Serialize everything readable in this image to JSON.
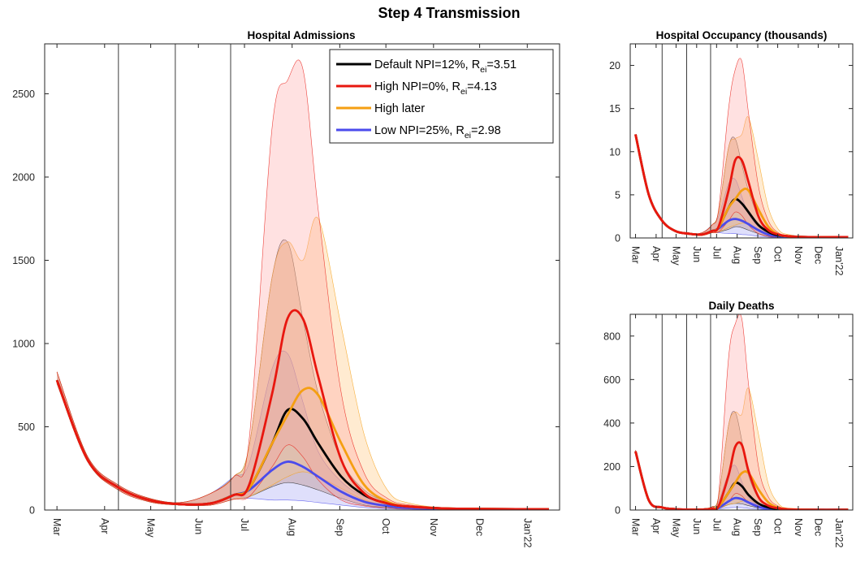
{
  "figure_title": "Step 4 Transmission",
  "colors": {
    "default": "#000000",
    "high": "#e8170f",
    "high_later": "#f59f12",
    "low": "#4b4bec",
    "default_band": "#b07a6c",
    "high_band": "#ff9c9c",
    "high_later_band": "#ffc070",
    "low_band": "#8c8cf0",
    "axis": "#262626"
  },
  "months": [
    "Mar",
    "Apr",
    "May",
    "Jun",
    "Jul",
    "Aug",
    "Sep",
    "Oct",
    "Nov",
    "Dec",
    "Jan'22"
  ],
  "legend": [
    {
      "series": "default",
      "pre": "Default NPI=12%, R",
      "sub": "ei",
      "post": "=3.51"
    },
    {
      "series": "high",
      "pre": "High NPI=0%, R",
      "sub": "ei",
      "post": "=4.13"
    },
    {
      "series": "high_later",
      "pre": "High later",
      "sub": "",
      "post": ""
    },
    {
      "series": "low",
      "pre": "Low NPI=25%, R",
      "sub": "ei",
      "post": "=2.98"
    }
  ],
  "chart_data": [
    {
      "id": "admissions",
      "type": "line",
      "title": "Hospital Admissions",
      "x_unit": "day index from 1 Mar 2021",
      "xlim": [
        -8,
        327
      ],
      "ylim": [
        0,
        2800
      ],
      "yticks": [
        0,
        500,
        1000,
        1500,
        2000,
        2500
      ],
      "vlines": [
        40,
        77,
        113
      ],
      "series": [
        {
          "key": "default",
          "name": "Default NPI=12%, R_ei=3.51",
          "x": [
            0,
            20,
            40,
            60,
            80,
            100,
            115,
            125,
            140,
            150,
            160,
            170,
            185,
            200,
            215,
            230,
            260,
            320
          ],
          "y": [
            780,
            300,
            135,
            60,
            35,
            40,
            90,
            130,
            400,
            600,
            550,
            400,
            200,
            90,
            40,
            20,
            8,
            5
          ],
          "lower": [
            760,
            290,
            120,
            50,
            30,
            30,
            65,
            80,
            140,
            165,
            150,
            120,
            70,
            30,
            15,
            8,
            5,
            3
          ],
          "upper": [
            830,
            320,
            150,
            70,
            45,
            100,
            200,
            380,
            1400,
            1610,
            1150,
            700,
            300,
            120,
            50,
            25,
            10,
            6
          ]
        },
        {
          "key": "high",
          "name": "High NPI=0%, R_ei=4.13",
          "x": [
            0,
            20,
            40,
            60,
            80,
            100,
            115,
            125,
            140,
            150,
            160,
            170,
            185,
            200,
            215,
            230,
            260,
            320
          ],
          "y": [
            780,
            300,
            135,
            60,
            35,
            40,
            90,
            150,
            700,
            1150,
            1150,
            800,
            300,
            100,
            40,
            20,
            8,
            5
          ],
          "lower": [
            760,
            290,
            120,
            50,
            30,
            30,
            65,
            80,
            260,
            390,
            320,
            180,
            60,
            25,
            12,
            6,
            4,
            3
          ],
          "upper": [
            830,
            320,
            150,
            70,
            45,
            100,
            200,
            420,
            2300,
            2580,
            2650,
            1800,
            700,
            220,
            70,
            30,
            12,
            6
          ]
        },
        {
          "key": "high_later",
          "name": "High later",
          "x": [
            0,
            20,
            40,
            60,
            80,
            100,
            115,
            125,
            140,
            150,
            160,
            170,
            185,
            200,
            215,
            230,
            260,
            320
          ],
          "y": [
            780,
            300,
            135,
            60,
            35,
            40,
            90,
            130,
            400,
            570,
            720,
            690,
            400,
            150,
            50,
            20,
            8,
            5
          ],
          "lower": [
            760,
            290,
            120,
            50,
            30,
            30,
            65,
            80,
            150,
            200,
            230,
            200,
            130,
            60,
            25,
            10,
            5,
            3
          ],
          "upper": [
            830,
            320,
            150,
            70,
            45,
            100,
            200,
            380,
            1400,
            1610,
            1500,
            1750,
            1100,
            450,
            120,
            40,
            12,
            6
          ]
        },
        {
          "key": "low",
          "name": "Low NPI=25%, R_ei=2.98",
          "x": [
            0,
            20,
            40,
            60,
            80,
            100,
            115,
            125,
            140,
            150,
            160,
            170,
            185,
            200,
            215,
            230,
            260,
            320
          ],
          "y": [
            780,
            300,
            135,
            60,
            35,
            40,
            90,
            120,
            240,
            290,
            260,
            200,
            110,
            50,
            25,
            12,
            6,
            4
          ],
          "lower": [
            760,
            290,
            120,
            50,
            30,
            30,
            65,
            70,
            60,
            60,
            55,
            45,
            30,
            15,
            8,
            5,
            3,
            2
          ],
          "upper": [
            830,
            320,
            150,
            70,
            45,
            100,
            200,
            280,
            850,
            940,
            650,
            350,
            170,
            80,
            35,
            15,
            7,
            4
          ]
        }
      ]
    },
    {
      "id": "occupancy",
      "type": "line",
      "title": "Hospital Occupancy (thousands)",
      "x_unit": "day index from 1 Mar 2021",
      "xlim": [
        -8,
        327
      ],
      "ylim": [
        0,
        22.5
      ],
      "yticks": [
        0,
        5,
        10,
        15,
        20
      ],
      "vlines": [
        40,
        77,
        113
      ],
      "series": [
        {
          "key": "default",
          "name": "Default NPI=12%, R_ei=3.51",
          "x": [
            0,
            20,
            40,
            60,
            80,
            100,
            115,
            125,
            140,
            150,
            160,
            170,
            185,
            200,
            215,
            230,
            260,
            320
          ],
          "y": [
            12,
            5,
            2,
            0.8,
            0.5,
            0.4,
            0.8,
            1.2,
            3.5,
            4.5,
            4.0,
            3.0,
            1.5,
            0.7,
            0.3,
            0.2,
            0.1,
            0.1
          ],
          "lower": [
            12,
            5,
            2,
            0.8,
            0.5,
            0.3,
            0.6,
            0.7,
            1.0,
            1.3,
            1.2,
            0.9,
            0.5,
            0.2,
            0.1,
            0.1,
            0.05,
            0.05
          ],
          "upper": [
            12,
            5,
            2,
            0.8,
            0.5,
            0.6,
            1.5,
            3.0,
            10.5,
            11.5,
            8.5,
            5.5,
            2.5,
            1.0,
            0.4,
            0.2,
            0.1,
            0.1
          ]
        },
        {
          "key": "high",
          "name": "High NPI=0%, R_ei=4.13",
          "x": [
            0,
            20,
            40,
            60,
            80,
            100,
            115,
            125,
            140,
            150,
            160,
            170,
            185,
            200,
            215,
            230,
            260,
            320
          ],
          "y": [
            12,
            5,
            2,
            0.8,
            0.5,
            0.4,
            0.8,
            1.3,
            5.5,
            9.0,
            9.0,
            6.5,
            2.5,
            0.9,
            0.4,
            0.2,
            0.1,
            0.1
          ],
          "lower": [
            12,
            5,
            2,
            0.8,
            0.5,
            0.3,
            0.6,
            0.7,
            2.0,
            3.0,
            2.6,
            1.5,
            0.5,
            0.2,
            0.1,
            0.1,
            0.05,
            0.05
          ],
          "upper": [
            12,
            5,
            2,
            0.8,
            0.5,
            0.6,
            1.5,
            3.3,
            15.0,
            19.5,
            20.5,
            14.5,
            6.0,
            2.0,
            0.6,
            0.3,
            0.1,
            0.1
          ]
        },
        {
          "key": "high_later",
          "name": "High later",
          "x": [
            0,
            20,
            40,
            60,
            80,
            100,
            115,
            125,
            140,
            150,
            160,
            170,
            185,
            200,
            215,
            230,
            260,
            320
          ],
          "y": [
            12,
            5,
            2,
            0.8,
            0.5,
            0.4,
            0.8,
            1.2,
            3.5,
            4.5,
            5.5,
            5.5,
            3.3,
            1.3,
            0.4,
            0.2,
            0.1,
            0.1
          ],
          "lower": [
            12,
            5,
            2,
            0.8,
            0.5,
            0.3,
            0.6,
            0.7,
            1.2,
            1.5,
            1.7,
            1.6,
            1.0,
            0.5,
            0.2,
            0.1,
            0.05,
            0.05
          ],
          "upper": [
            12,
            5,
            2,
            0.8,
            0.5,
            0.6,
            1.5,
            3.0,
            10.5,
            11.5,
            12.0,
            14.0,
            9.0,
            3.5,
            1.0,
            0.4,
            0.1,
            0.1
          ]
        },
        {
          "key": "low",
          "name": "Low NPI=25%, R_ei=2.98",
          "x": [
            0,
            20,
            40,
            60,
            80,
            100,
            115,
            125,
            140,
            150,
            160,
            170,
            185,
            200,
            215,
            230,
            260,
            320
          ],
          "y": [
            12,
            5,
            2,
            0.8,
            0.5,
            0.4,
            0.8,
            1.1,
            2.0,
            2.2,
            2.0,
            1.6,
            0.9,
            0.4,
            0.2,
            0.1,
            0.05,
            0.05
          ],
          "lower": [
            12,
            5,
            2,
            0.8,
            0.5,
            0.3,
            0.6,
            0.6,
            0.5,
            0.5,
            0.4,
            0.35,
            0.2,
            0.1,
            0.05,
            0.05,
            0.02,
            0.02
          ],
          "upper": [
            12,
            5,
            2,
            0.8,
            0.5,
            0.6,
            1.5,
            2.5,
            6.3,
            6.8,
            4.8,
            2.8,
            1.3,
            0.6,
            0.3,
            0.1,
            0.05,
            0.05
          ]
        }
      ]
    },
    {
      "id": "deaths",
      "type": "line",
      "title": "Daily Deaths",
      "x_unit": "day index from 1 Mar 2021",
      "xlim": [
        -8,
        327
      ],
      "ylim": [
        0,
        900
      ],
      "yticks": [
        0,
        200,
        400,
        600,
        800
      ],
      "vlines": [
        40,
        77,
        113
      ],
      "series": [
        {
          "key": "default",
          "name": "Default NPI=12%, R_ei=3.51",
          "x": [
            0,
            20,
            40,
            60,
            80,
            100,
            115,
            125,
            140,
            150,
            160,
            170,
            185,
            200,
            215,
            230,
            260,
            320
          ],
          "y": [
            270,
            45,
            12,
            4,
            2,
            2,
            6,
            15,
            80,
            125,
            110,
            70,
            30,
            12,
            5,
            2,
            1,
            1
          ],
          "lower": [
            265,
            42,
            11,
            3,
            2,
            1,
            4,
            7,
            25,
            30,
            28,
            20,
            10,
            4,
            2,
            1,
            1,
            1
          ],
          "upper": [
            275,
            48,
            13,
            5,
            3,
            6,
            15,
            60,
            390,
            450,
            320,
            160,
            55,
            20,
            7,
            3,
            1,
            1
          ]
        },
        {
          "key": "high",
          "name": "High NPI=0%, R_ei=4.13",
          "x": [
            0,
            20,
            40,
            60,
            80,
            100,
            115,
            125,
            140,
            150,
            160,
            170,
            185,
            200,
            215,
            230,
            260,
            320
          ],
          "y": [
            270,
            45,
            12,
            4,
            2,
            2,
            6,
            18,
            160,
            290,
            300,
            180,
            60,
            20,
            8,
            3,
            1,
            1
          ],
          "lower": [
            265,
            42,
            11,
            3,
            2,
            1,
            4,
            8,
            40,
            75,
            65,
            35,
            12,
            5,
            2,
            1,
            1,
            1
          ],
          "upper": [
            275,
            48,
            13,
            5,
            3,
            6,
            15,
            70,
            700,
            855,
            880,
            580,
            200,
            60,
            18,
            6,
            2,
            1
          ]
        },
        {
          "key": "high_later",
          "name": "High later",
          "x": [
            0,
            20,
            40,
            60,
            80,
            100,
            115,
            125,
            140,
            150,
            160,
            170,
            185,
            200,
            215,
            230,
            260,
            320
          ],
          "y": [
            270,
            45,
            12,
            4,
            2,
            2,
            6,
            15,
            80,
            125,
            170,
            170,
            95,
            35,
            10,
            4,
            1,
            1
          ],
          "lower": [
            265,
            42,
            11,
            3,
            2,
            1,
            4,
            7,
            25,
            30,
            40,
            45,
            30,
            12,
            4,
            2,
            1,
            1
          ],
          "upper": [
            275,
            48,
            13,
            5,
            3,
            6,
            15,
            60,
            390,
            450,
            440,
            560,
            350,
            120,
            30,
            8,
            2,
            1
          ]
        },
        {
          "key": "low",
          "name": "Low NPI=25%, R_ei=2.98",
          "x": [
            0,
            20,
            40,
            60,
            80,
            100,
            115,
            125,
            140,
            150,
            160,
            170,
            185,
            200,
            215,
            230,
            260,
            320
          ],
          "y": [
            270,
            45,
            12,
            4,
            2,
            2,
            5,
            10,
            40,
            55,
            50,
            35,
            15,
            6,
            3,
            1,
            1,
            1
          ],
          "lower": [
            265,
            42,
            11,
            3,
            2,
            1,
            3,
            5,
            10,
            12,
            11,
            8,
            4,
            2,
            1,
            1,
            1,
            1
          ],
          "upper": [
            275,
            48,
            13,
            5,
            3,
            5,
            12,
            40,
            170,
            205,
            130,
            60,
            20,
            8,
            3,
            1,
            1,
            1
          ]
        }
      ]
    }
  ]
}
